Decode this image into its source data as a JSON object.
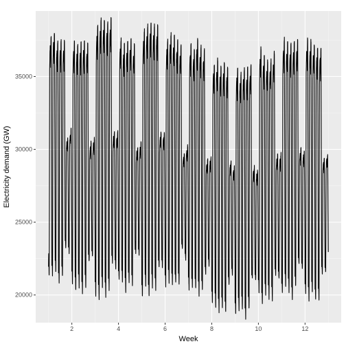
{
  "chart_data": {
    "type": "line",
    "xlabel": "Week",
    "ylabel": "Electricity demand (GW)",
    "xlim": [
      0.45,
      13.55
    ],
    "ylim": [
      18100,
      39500
    ],
    "x_ticks": [
      2,
      4,
      6,
      8,
      10,
      12
    ],
    "x_minor_ticks": [
      1,
      3,
      5,
      7,
      9,
      11,
      13
    ],
    "y_ticks": [
      20000,
      25000,
      30000,
      35000
    ],
    "y_minor_ticks": [
      22500,
      27500,
      32500,
      37500
    ],
    "grid": true,
    "legend": "none",
    "series": [
      {
        "description_of_pattern": "half-hourly demand over 12 weeks; weekly cycle of 5 high weekdays and 2 lower weekend days",
        "weeks": [
          {
            "weekday_peak": 37800,
            "weekend_peak": 31000,
            "trough": 22000
          },
          {
            "weekday_peak": 37600,
            "weekend_peak": 30500,
            "trough": 21200
          },
          {
            "weekday_peak": 38600,
            "weekend_peak": 30800,
            "trough": 21000
          },
          {
            "weekday_peak": 37300,
            "weekend_peak": 30400,
            "trough": 21400
          },
          {
            "weekday_peak": 38300,
            "weekend_peak": 31000,
            "trough": 21000
          },
          {
            "weekday_peak": 37500,
            "weekend_peak": 30000,
            "trough": 21500
          },
          {
            "weekday_peak": 37200,
            "weekend_peak": 29700,
            "trough": 20800
          },
          {
            "weekday_peak": 36000,
            "weekend_peak": 29000,
            "trough": 19800
          },
          {
            "weekday_peak": 35500,
            "weekend_peak": 28800,
            "trough": 19600
          },
          {
            "weekday_peak": 36500,
            "weekend_peak": 29800,
            "trough": 20500
          },
          {
            "weekday_peak": 37500,
            "weekend_peak": 29700,
            "trough": 21000
          },
          {
            "weekday_peak": 37200,
            "weekend_peak": 29500,
            "trough": 20800
          }
        ]
      }
    ]
  }
}
